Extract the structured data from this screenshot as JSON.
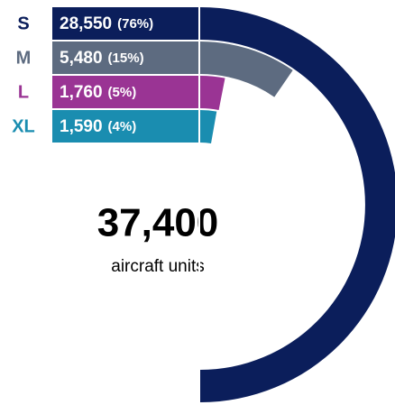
{
  "chart_data": {
    "type": "radial-bar",
    "categories": [
      "S",
      "M",
      "L",
      "XL"
    ],
    "values": [
      28550,
      5480,
      1760,
      1590
    ],
    "value_labels": [
      "28,550",
      "5,480",
      "1,760",
      "1,590"
    ],
    "percentages": [
      76,
      15,
      5,
      4
    ],
    "percentage_labels": [
      "(76%)",
      "(15%)",
      "(5%)",
      "(4%)"
    ],
    "colors": [
      "#0b1e5b",
      "#5d6b80",
      "#9a3494",
      "#1a8db0"
    ],
    "total": {
      "value": 37400,
      "label": "37,400"
    },
    "total_text": "aircraft units"
  }
}
